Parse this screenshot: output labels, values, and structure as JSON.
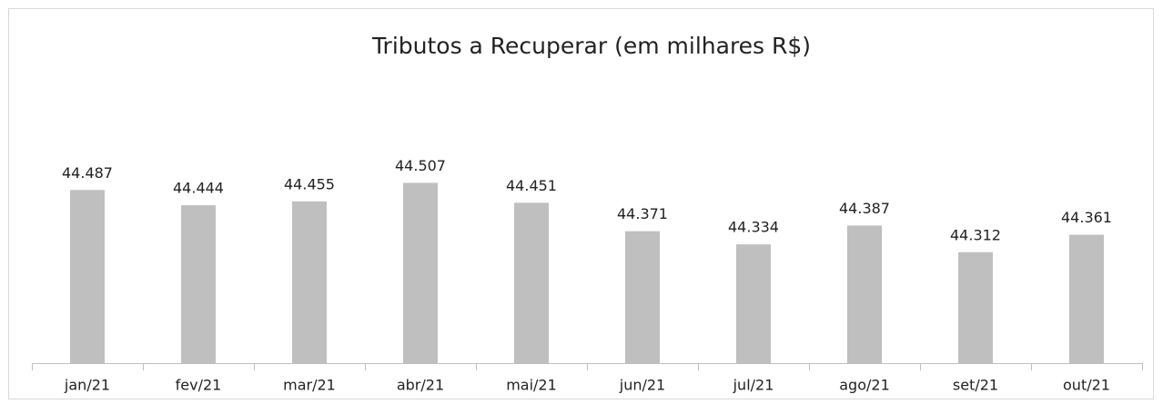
{
  "chart_data": {
    "type": "bar",
    "title": "Tributos a Recuperar (em milhares R$)",
    "categories": [
      "jan/21",
      "fev/21",
      "mar/21",
      "abr/21",
      "mai/21",
      "jun/21",
      "jul/21",
      "ago/21",
      "set/21",
      "out/21"
    ],
    "values": [
      44487,
      44444,
      44455,
      44507,
      44451,
      44371,
      44334,
      44387,
      44312,
      44361
    ],
    "value_labels": [
      "44.487",
      "44.444",
      "44.455",
      "44.507",
      "44.451",
      "44.371",
      "44.334",
      "44.387",
      "44.312",
      "44.361"
    ],
    "color": "#bfbfbf",
    "ylim": [
      44000,
      44600
    ]
  }
}
